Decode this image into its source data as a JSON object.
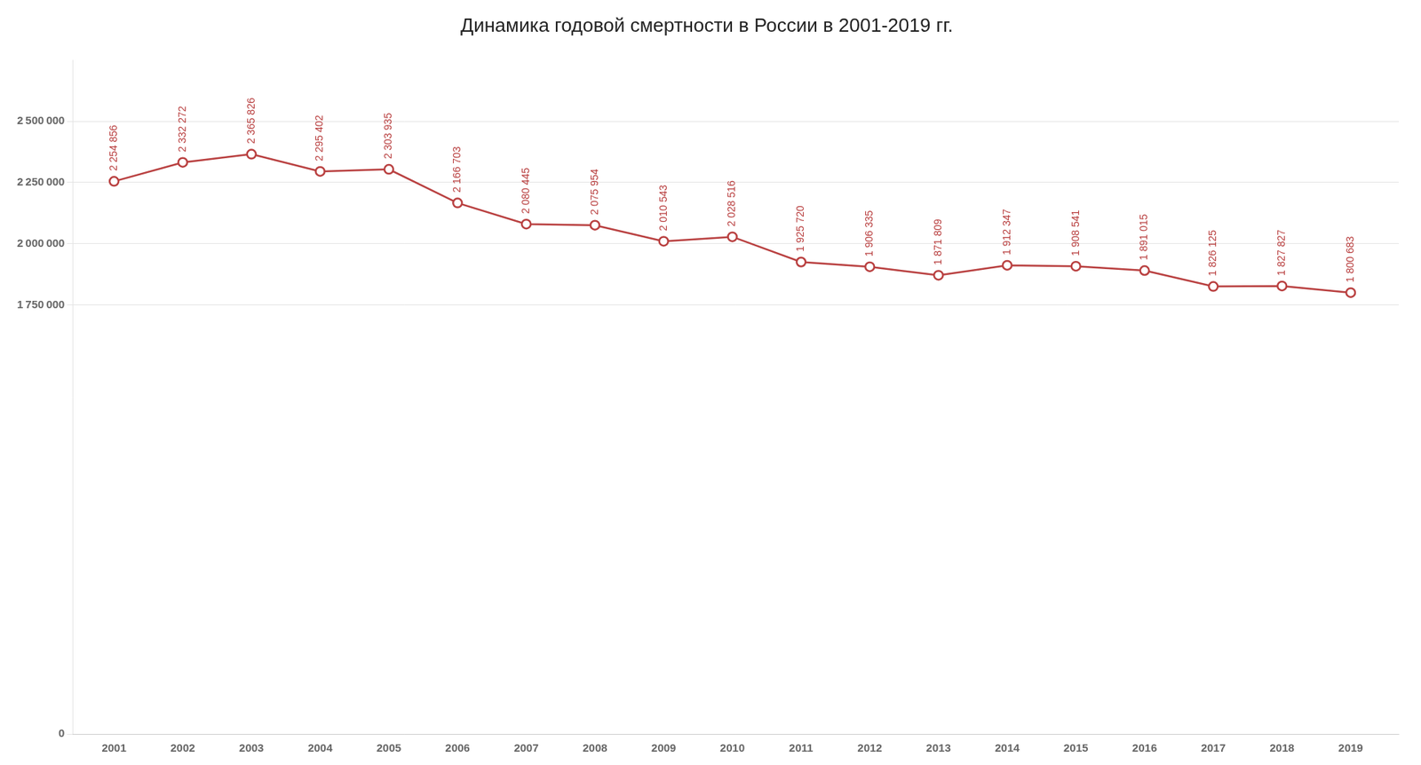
{
  "chart_data": {
    "type": "line",
    "title": "Динамика годовой смертности в России в 2001-2019 гг.",
    "x": [
      2001,
      2002,
      2003,
      2004,
      2005,
      2006,
      2007,
      2008,
      2009,
      2010,
      2011,
      2012,
      2013,
      2014,
      2015,
      2016,
      2017,
      2018,
      2019
    ],
    "values": [
      2254856,
      2332272,
      2365826,
      2295402,
      2303935,
      2166703,
      2080445,
      2075954,
      2010543,
      2028516,
      1925720,
      1906335,
      1871809,
      1912347,
      1908541,
      1891015,
      1826125,
      1827827,
      1800683
    ],
    "value_labels": [
      "2 254 856",
      "2 332 272",
      "2 365 826",
      "2 295 402",
      "2 303 935",
      "2 166 703",
      "2 080 445",
      "2 075 954",
      "2 010 543",
      "2 028 516",
      "1 925 720",
      "1 906 335",
      "1 871 809",
      "1 912 347",
      "1 908 541",
      "1 891 015",
      "1 826 125",
      "1 827 827",
      "1 800 683"
    ],
    "data_labels": true,
    "color": "#b94040",
    "marker": "circle",
    "xlim": [
      2000.4,
      2019.7
    ],
    "xticks": [
      2001,
      2002,
      2003,
      2004,
      2005,
      2006,
      2007,
      2008,
      2009,
      2010,
      2011,
      2012,
      2013,
      2014,
      2015,
      2016,
      2017,
      2018,
      2019
    ],
    "ylim": [
      0,
      2750000
    ],
    "yticks": [
      0,
      {
        "value": 1750000,
        "label": "1 750 000"
      },
      {
        "value": 2000000,
        "label": "2 000 000"
      },
      {
        "value": 2250000,
        "label": "2 250 000"
      },
      {
        "value": 2500000,
        "label": "2 500 000"
      }
    ],
    "grid": true
  }
}
